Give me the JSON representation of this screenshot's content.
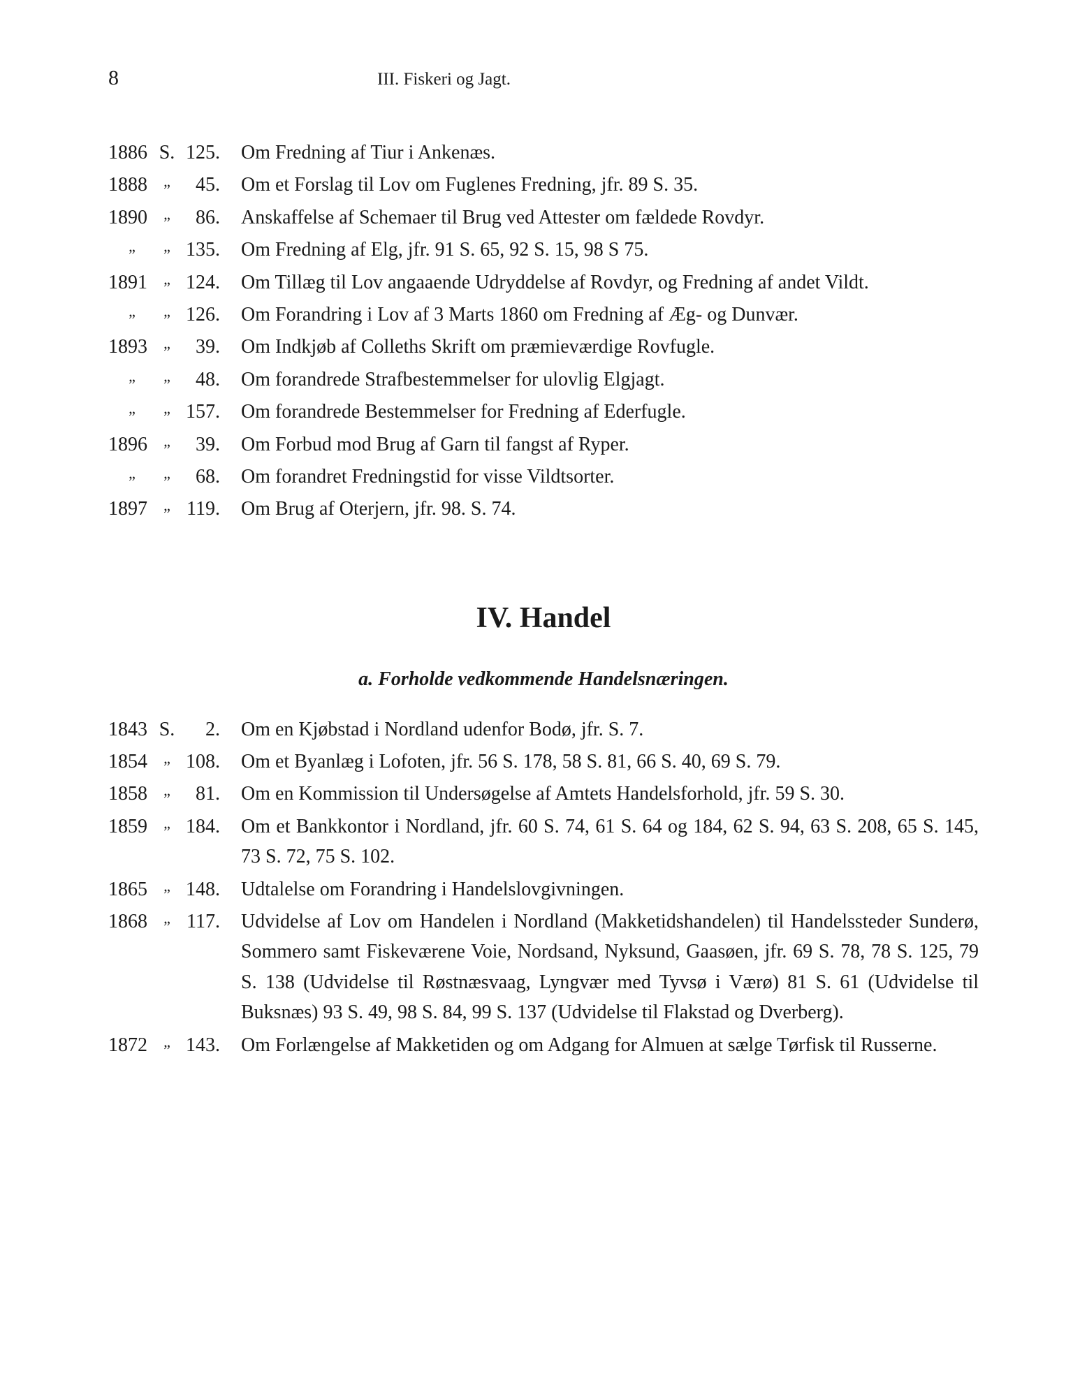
{
  "page_number": "8",
  "header": "III.   Fiskeri og Jagt.",
  "section3_entries": [
    {
      "year": "1886",
      "letter": "S.",
      "num": "125",
      "desc": "Om Fredning af Tiur i Ankenæs."
    },
    {
      "year": "1888",
      "letter": "„",
      "num": "45",
      "desc": "Om et Forslag til Lov om Fuglenes Fredning, jfr. 89 S. 35."
    },
    {
      "year": "1890",
      "letter": "„",
      "num": "86",
      "desc": "Anskaffelse af Schemaer til Brug ved Attester om fældede Rovdyr."
    },
    {
      "year": "„",
      "letter": "„",
      "num": "135",
      "desc": "Om Fredning af Elg, jfr. 91 S. 65, 92 S. 15, 98 S 75."
    },
    {
      "year": "1891",
      "letter": "„",
      "num": "124",
      "desc": "Om Tillæg til Lov angaaende Udryddelse af Rovdyr, og Fredning af andet Vildt."
    },
    {
      "year": "„",
      "letter": "„",
      "num": "126",
      "desc": "Om Forandring i Lov af 3 Marts 1860 om Fredning af Æg- og Dunvær."
    },
    {
      "year": "1893",
      "letter": "„",
      "num": "39",
      "desc": "Om Indkjøb af Colleths Skrift om præmieværdige Rovfugle."
    },
    {
      "year": "„",
      "letter": "„",
      "num": "48",
      "desc": "Om forandrede Strafbestemmelser for ulovlig Elgjagt."
    },
    {
      "year": "„",
      "letter": "„",
      "num": "157",
      "desc": "Om forandrede Bestemmelser for Fredning af Ederfugle."
    },
    {
      "year": "1896",
      "letter": "„",
      "num": "39",
      "desc": "Om Forbud mod Brug af Garn til fangst af Ryper."
    },
    {
      "year": "„",
      "letter": "„",
      "num": "68",
      "desc": "Om forandret Fredningstid for visse Vildtsorter."
    },
    {
      "year": "1897",
      "letter": "„",
      "num": "119",
      "desc": "Om Brug af Oterjern, jfr. 98. S. 74."
    }
  ],
  "section4_title": "IV.    Handel",
  "section4a_title": "a.    Forholde vedkommende Handelsnæringen.",
  "section4_entries": [
    {
      "year": "1843",
      "letter": "S.",
      "num": "2",
      "desc": "Om en Kjøbstad i Nordland udenfor Bodø, jfr. S. 7."
    },
    {
      "year": "1854",
      "letter": "„",
      "num": "108",
      "desc": "Om et Byanlæg i Lofoten, jfr. 56 S. 178, 58 S. 81, 66 S. 40, 69 S. 79."
    },
    {
      "year": "1858",
      "letter": "„",
      "num": "81",
      "desc": "Om en Kommission til Undersøgelse af Amtets Handelsforhold, jfr. 59 S. 30."
    },
    {
      "year": "1859",
      "letter": "„",
      "num": "184",
      "desc": "Om et Bankkontor i Nordland, jfr. 60 S. 74, 61 S. 64 og 184, 62 S. 94, 63 S. 208, 65 S. 145, 73 S. 72, 75 S. 102."
    },
    {
      "year": "1865",
      "letter": "„",
      "num": "148",
      "desc": "Udtalelse om Forandring i Handelslovgivningen."
    },
    {
      "year": "1868",
      "letter": "„",
      "num": "117",
      "desc": "Udvidelse af Lov om Handelen i Nordland (Makketidshandelen) til Handelssteder Sunderø, Sommero samt Fiskeværene Voie, Nordsand, Nyksund, Gaasøen, jfr. 69 S. 78, 78 S. 125, 79 S. 138 (Udvidelse til Røstnæsvaag, Lyngvær med Tyvsø i Værø) 81 S. 61 (Udvidelse til Buksnæs) 93 S. 49, 98 S. 84, 99 S. 137 (Udvidelse til Flakstad og Dverberg)."
    },
    {
      "year": "1872",
      "letter": "„",
      "num": "143",
      "desc": "Om Forlængelse af Makketiden og om Adgang for Almuen at sælge Tørfisk til Russerne."
    }
  ]
}
